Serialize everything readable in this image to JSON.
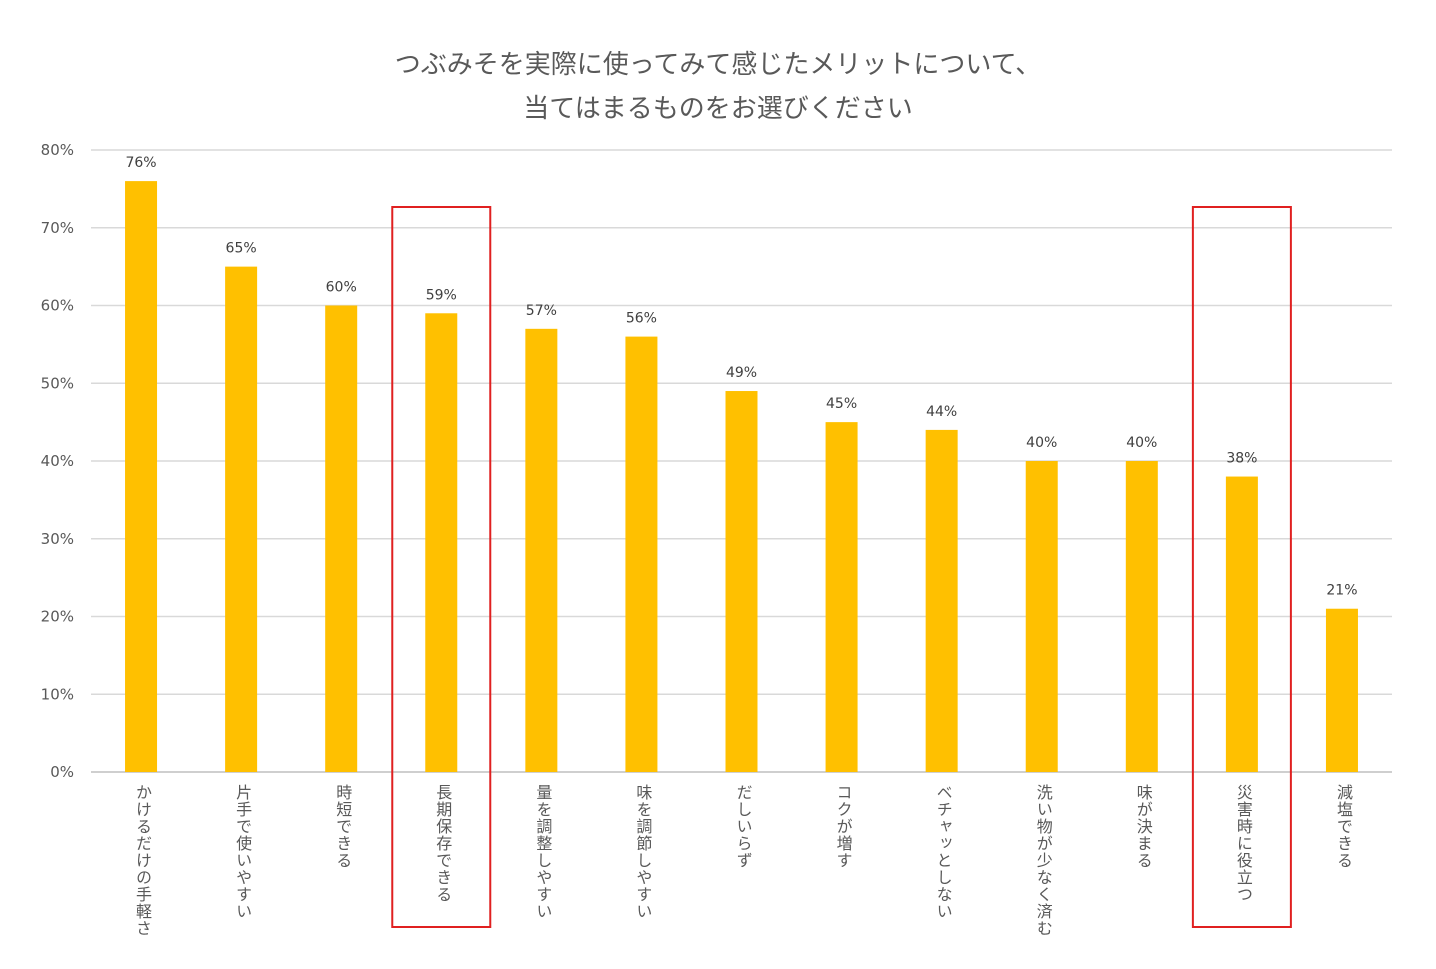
{
  "chart_data": {
    "type": "bar",
    "title_line1": "つぶみそを実際に使ってみて感じたメリットについて、",
    "title_line2": "当てはまるものをお選びください",
    "categories": [
      "かけるだけの手軽さ",
      "片手で使いやすい",
      "時短できる",
      "長期保存できる",
      "量を調整しやすい",
      "味を調節しやすい",
      "だしいらず",
      "コクが増す",
      "ベチャッとしない",
      "洗い物が少なく済む",
      "味が決まる",
      "災害時に役立つ",
      "減塩できる"
    ],
    "values": [
      76,
      65,
      60,
      59,
      57,
      56,
      49,
      45,
      44,
      40,
      40,
      38,
      21
    ],
    "data_labels": [
      "76%",
      "65%",
      "60%",
      "59%",
      "57%",
      "56%",
      "49%",
      "45%",
      "44%",
      "40%",
      "40%",
      "38%",
      "21%"
    ],
    "y_ticks": [
      "0%",
      "10%",
      "20%",
      "30%",
      "40%",
      "50%",
      "60%",
      "70%",
      "80%"
    ],
    "ylim": [
      0,
      80
    ],
    "bar_color": "#FFC000",
    "highlight_color": "#E02020",
    "highlighted": [
      "長期保存できる",
      "災害時に役立つ"
    ],
    "xlabel": "",
    "ylabel": "",
    "grid": true
  }
}
